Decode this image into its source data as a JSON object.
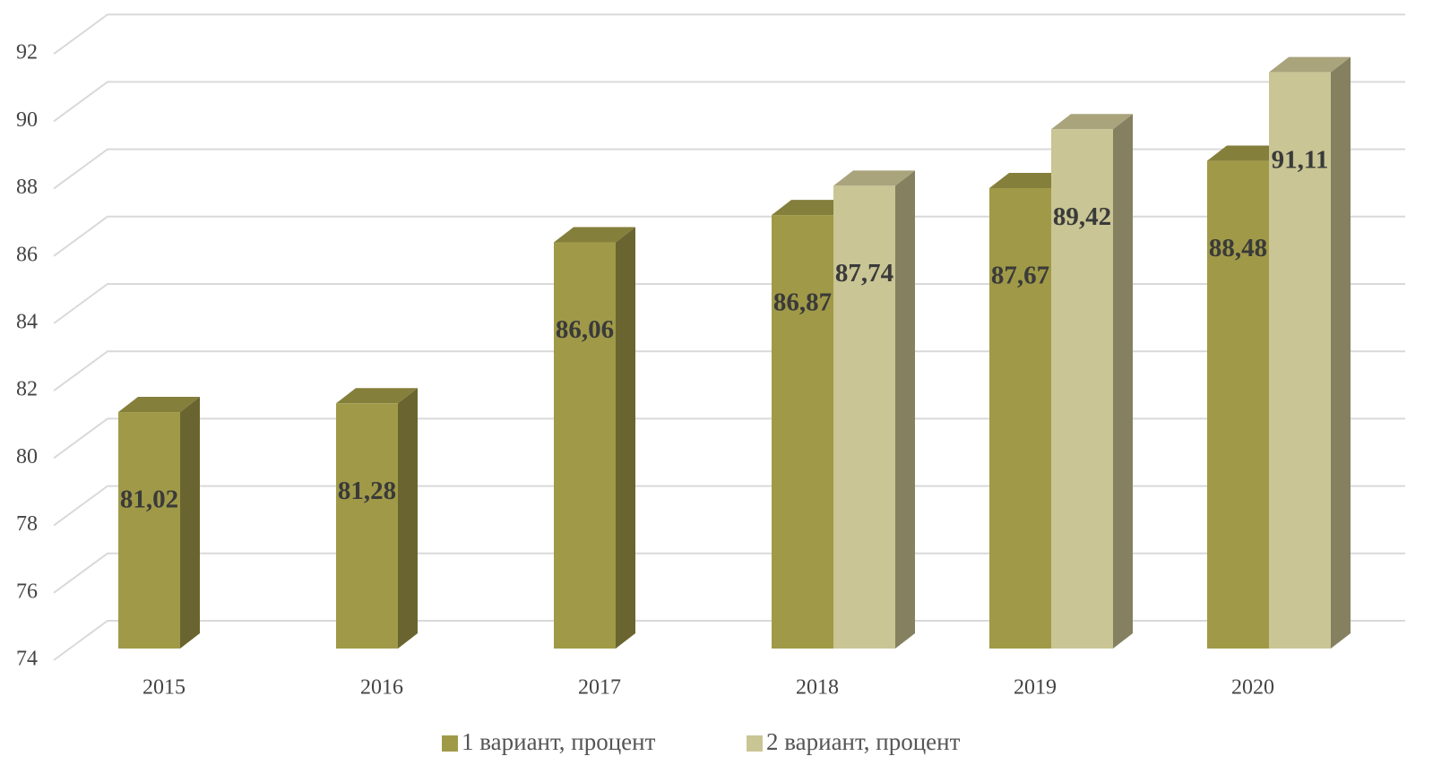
{
  "chart_data": {
    "type": "bar3d",
    "categories": [
      "2015",
      "2016",
      "2017",
      "2018",
      "2019",
      "2020"
    ],
    "series": [
      {
        "name": "1 вариант, процент",
        "color": "#a09a48",
        "side": "#6a6530",
        "top": "#857f3c",
        "values": [
          81.02,
          81.28,
          86.06,
          86.87,
          87.67,
          88.48
        ],
        "value_labels": [
          "81,02",
          "81,28",
          "86,06",
          "86,87",
          "87,67",
          "88,48"
        ]
      },
      {
        "name": "2 вариант, процент",
        "color": "#c9c594",
        "side": "#858060",
        "top": "#a9a47c",
        "values": [
          null,
          null,
          null,
          87.74,
          89.42,
          91.11
        ],
        "value_labels": [
          null,
          null,
          null,
          "87,74",
          "89,42",
          "91,11"
        ]
      }
    ],
    "ylim": [
      74,
      92
    ],
    "yticks": [
      74,
      76,
      78,
      80,
      82,
      84,
      86,
      88,
      90,
      92
    ],
    "grid": true,
    "legend": "bottom"
  }
}
